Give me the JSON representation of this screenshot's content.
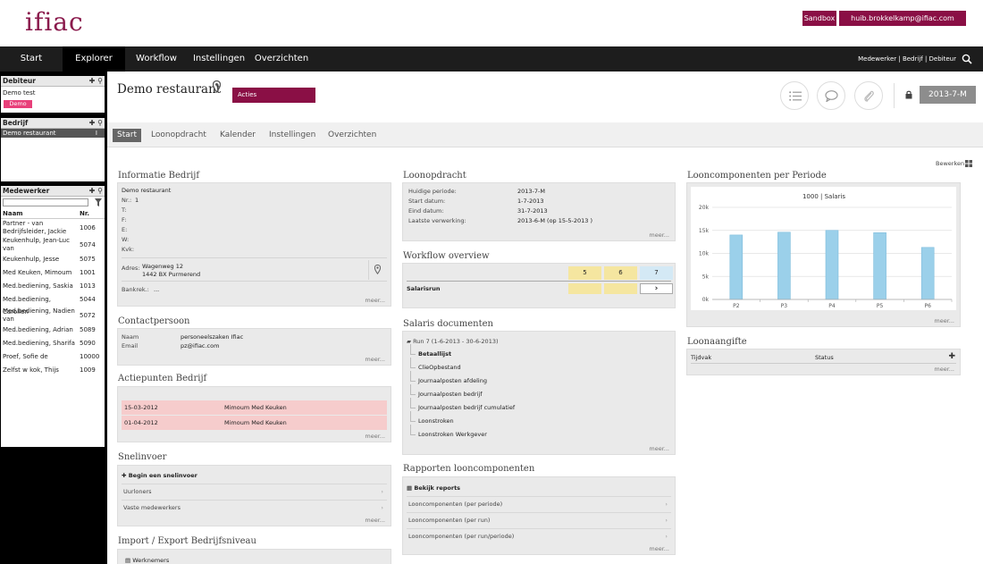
{
  "header": {
    "logo": "ifiac",
    "sandbox_label": "Sandbox",
    "user_email": "huib.brokkelkamp@ifiac.com"
  },
  "nav": {
    "items": [
      "Start",
      "Explorer",
      "Workflow",
      "Instellingen",
      "Overzichten"
    ],
    "active": "Explorer",
    "right": "Medewerker | Bedrijf | Debiteur"
  },
  "sidebar": {
    "debiteur": {
      "title": "Debiteur",
      "name": "Demo test",
      "badge": "Demo"
    },
    "bedrijf": {
      "title": "Bedrijf",
      "selected": "Demo restaurant",
      "selected_suffix": "I"
    },
    "medewerker": {
      "title": "Medewerker",
      "col_name": "Naam",
      "col_nr": "Nr.",
      "rows": [
        {
          "name": "Partner - van Bedrijfsleider, Jackie",
          "nr": "1006"
        },
        {
          "name": "Keukenhulp, Jean-Luc van",
          "nr": "5074"
        },
        {
          "name": "Keukenhulp, Jesse",
          "nr": "5075"
        },
        {
          "name": "Med Keuken, Mimoum",
          "nr": "1001"
        },
        {
          "name": "Med.bediening, Saskia",
          "nr": "1013"
        },
        {
          "name": "Med.bediening, Carolien",
          "nr": "5044"
        },
        {
          "name": "Med.bediening, Nadien van",
          "nr": "5072"
        },
        {
          "name": "Med.bediening, Adrian",
          "nr": "5089"
        },
        {
          "name": "Med.bediening, Sharifa",
          "nr": "5090"
        },
        {
          "name": "Proef, Sofie de",
          "nr": "10000"
        },
        {
          "name": "Zelfst w kok, Thijs",
          "nr": "1009"
        }
      ]
    }
  },
  "page": {
    "title": "Demo restaurant",
    "acties_label": "Acties",
    "period": "2013-7-M",
    "tabs": [
      "Start",
      "Loonopdracht",
      "Kalender",
      "Instellingen",
      "Overzichten"
    ],
    "active_tab": "Start",
    "bewerken": "Bewerken",
    "meer": "meer..."
  },
  "info_bedrijf": {
    "title": "Informatie Bedrijf",
    "name": "Demo restaurant",
    "nr_label": "Nr.:",
    "nr_value": "1",
    "labels": [
      "T:",
      "F:",
      "E:",
      "W:",
      "Kvk:"
    ],
    "adres_label": "Adres:",
    "adres_line1": "Wagenweg 12",
    "adres_line2": "1442 BX Purmerend",
    "bank_label": "Bankrek.:",
    "bank_value": "..."
  },
  "contactpersoon": {
    "title": "Contactpersoon",
    "naam_label": "Naam",
    "naam_value": "personeelszaken Ifiac",
    "email_label": "Email",
    "email_value": "pz@ifiac.com"
  },
  "actiepunten": {
    "title": "Actiepunten Bedrijf",
    "rows": [
      {
        "date": "15-03-2012",
        "name": "Mimoum Med Keuken"
      },
      {
        "date": "01-04-2012",
        "name": "Mimoum Med Keuken"
      }
    ]
  },
  "snelinvoer": {
    "title": "Snelinvoer",
    "begin": "Begin een snelinvoer",
    "items": [
      "Uurloners",
      "Vaste medewerkers"
    ]
  },
  "import_export": {
    "title": "Import / Export Bedrijfsniveau",
    "first": "Werknemers"
  },
  "loonopdracht": {
    "title": "Loonopdracht",
    "rows": [
      {
        "label": "Huidige periode:",
        "value": "2013-7-M"
      },
      {
        "label": "Start datum:",
        "value": "1-7-2013"
      },
      {
        "label": "Eind datum:",
        "value": "31-7-2013"
      },
      {
        "label": "Laatste verwerking:",
        "value": "2013-6-M (op 15-5-2013 )"
      }
    ]
  },
  "workflow": {
    "title": "Workflow overview",
    "cols": [
      "5",
      "6",
      "7"
    ],
    "row_label": "Salarisrun"
  },
  "salaris_docs": {
    "title": "Salaris documenten",
    "run": "Run 7 (1-6-2013 - 30-6-2013)",
    "items": [
      "Betaallijst",
      "ClieOpbestand",
      "Journaalposten afdeling",
      "Journaalposten bedrijf",
      "Journaalposten bedrijf cumulatief",
      "Loonstroken",
      "Loonstroken Werkgever"
    ]
  },
  "rapporten": {
    "title": "Rapporten looncomponenten",
    "bekijk": "Bekijk reports",
    "items": [
      "Looncomponenten (per periode)",
      "Looncomponenten (per run)",
      "Looncomponenten (per run/periode)"
    ]
  },
  "looncomp_periode": {
    "title": "Looncomponenten per Periode"
  },
  "chart_data": {
    "type": "bar",
    "title": "1000 | Salaris",
    "categories": [
      "P2",
      "P3",
      "P4",
      "P5",
      "P6"
    ],
    "values": [
      14000,
      14600,
      15000,
      14500,
      11300
    ],
    "yticks": [
      "0k",
      "5k",
      "10k",
      "15k",
      "20k"
    ],
    "ylim": [
      0,
      20000
    ],
    "color": "#9bd0ea"
  },
  "loonaangifte": {
    "title": "Loonaangifte",
    "col1": "Tijdvak",
    "col2": "Status"
  }
}
